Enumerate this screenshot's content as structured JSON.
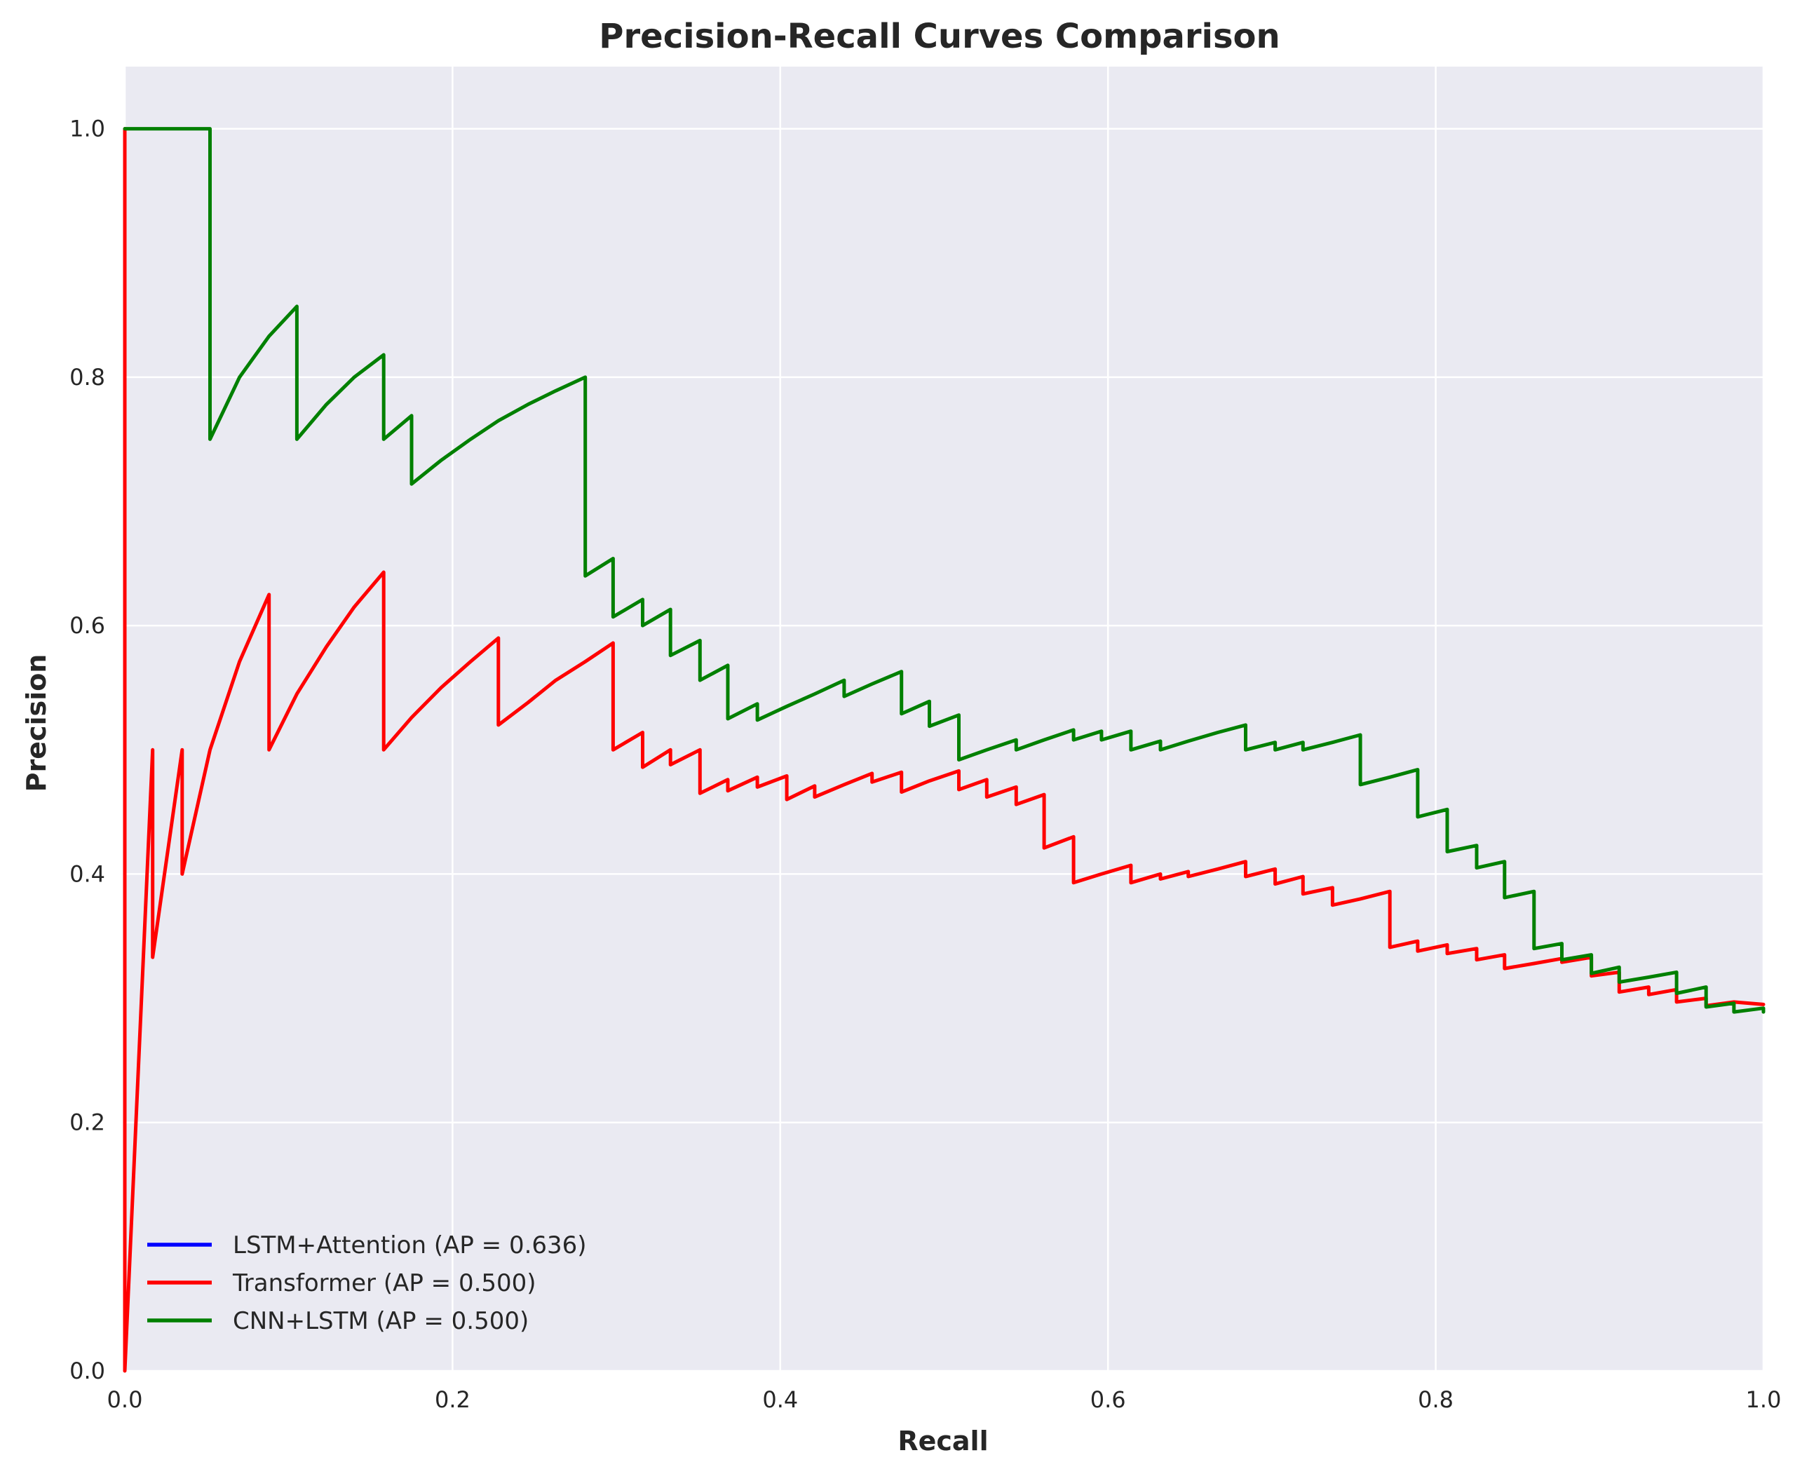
{
  "chart_data": {
    "type": "line",
    "title": "Precision-Recall Curves Comparison",
    "xlabel": "Recall",
    "ylabel": "Precision",
    "xlim": [
      0.0,
      1.0
    ],
    "ylim": [
      0.0,
      1.05
    ],
    "xticks": [
      "0.0",
      "0.2",
      "0.4",
      "0.6",
      "0.8",
      "1.0"
    ],
    "yticks": [
      "0.0",
      "0.2",
      "0.4",
      "0.6",
      "0.8",
      "1.0"
    ],
    "grid": true,
    "legend_position": "lower-left",
    "legend": [
      {
        "label": "LSTM+Attention (AP = 0.636)",
        "color": "#0000ff"
      },
      {
        "label": "Transformer (AP = 0.500)",
        "color": "#ff0000"
      },
      {
        "label": "CNN+LSTM (AP = 0.500)",
        "color": "#008000"
      }
    ],
    "series": [
      {
        "name": "LSTM+Attention (AP = 0.636)",
        "color": "#0000ff",
        "points": []
      },
      {
        "name": "Transformer (AP = 0.500)",
        "color": "#ff0000",
        "points": [
          [
            0.0,
            1.0
          ],
          [
            0.0,
            0.0
          ],
          [
            0.017,
            0.5
          ],
          [
            0.017,
            0.333
          ],
          [
            0.035,
            0.5
          ],
          [
            0.035,
            0.4
          ],
          [
            0.052,
            0.5
          ],
          [
            0.07,
            0.571
          ],
          [
            0.088,
            0.625
          ],
          [
            0.088,
            0.5
          ],
          [
            0.105,
            0.545
          ],
          [
            0.123,
            0.583
          ],
          [
            0.14,
            0.615
          ],
          [
            0.158,
            0.643
          ],
          [
            0.158,
            0.5
          ],
          [
            0.175,
            0.526
          ],
          [
            0.193,
            0.55
          ],
          [
            0.211,
            0.571
          ],
          [
            0.228,
            0.59
          ],
          [
            0.228,
            0.52
          ],
          [
            0.246,
            0.538
          ],
          [
            0.263,
            0.556
          ],
          [
            0.281,
            0.571
          ],
          [
            0.298,
            0.586
          ],
          [
            0.298,
            0.5
          ],
          [
            0.316,
            0.514
          ],
          [
            0.316,
            0.486
          ],
          [
            0.333,
            0.5
          ],
          [
            0.333,
            0.488
          ],
          [
            0.351,
            0.5
          ],
          [
            0.351,
            0.465
          ],
          [
            0.368,
            0.476
          ],
          [
            0.368,
            0.467
          ],
          [
            0.386,
            0.478
          ],
          [
            0.386,
            0.47
          ],
          [
            0.404,
            0.479
          ],
          [
            0.404,
            0.46
          ],
          [
            0.421,
            0.471
          ],
          [
            0.421,
            0.462
          ],
          [
            0.439,
            0.472
          ],
          [
            0.456,
            0.481
          ],
          [
            0.456,
            0.474
          ],
          [
            0.474,
            0.482
          ],
          [
            0.474,
            0.466
          ],
          [
            0.491,
            0.475
          ],
          [
            0.509,
            0.483
          ],
          [
            0.509,
            0.468
          ],
          [
            0.526,
            0.476
          ],
          [
            0.526,
            0.462
          ],
          [
            0.544,
            0.47
          ],
          [
            0.544,
            0.456
          ],
          [
            0.561,
            0.464
          ],
          [
            0.561,
            0.421
          ],
          [
            0.579,
            0.43
          ],
          [
            0.579,
            0.393
          ],
          [
            0.596,
            0.4
          ],
          [
            0.614,
            0.407
          ],
          [
            0.614,
            0.393
          ],
          [
            0.632,
            0.4
          ],
          [
            0.632,
            0.396
          ],
          [
            0.649,
            0.402
          ],
          [
            0.649,
            0.398
          ],
          [
            0.667,
            0.404
          ],
          [
            0.684,
            0.41
          ],
          [
            0.684,
            0.398
          ],
          [
            0.702,
            0.404
          ],
          [
            0.702,
            0.392
          ],
          [
            0.719,
            0.398
          ],
          [
            0.719,
            0.384
          ],
          [
            0.737,
            0.389
          ],
          [
            0.737,
            0.375
          ],
          [
            0.754,
            0.38
          ],
          [
            0.772,
            0.386
          ],
          [
            0.772,
            0.341
          ],
          [
            0.789,
            0.346
          ],
          [
            0.789,
            0.338
          ],
          [
            0.807,
            0.343
          ],
          [
            0.807,
            0.336
          ],
          [
            0.825,
            0.34
          ],
          [
            0.825,
            0.331
          ],
          [
            0.842,
            0.335
          ],
          [
            0.842,
            0.324
          ],
          [
            0.86,
            0.328
          ],
          [
            0.877,
            0.332
          ],
          [
            0.877,
            0.329
          ],
          [
            0.895,
            0.333
          ],
          [
            0.895,
            0.318
          ],
          [
            0.912,
            0.321
          ],
          [
            0.912,
            0.305
          ],
          [
            0.93,
            0.309
          ],
          [
            0.93,
            0.303
          ],
          [
            0.947,
            0.307
          ],
          [
            0.947,
            0.297
          ],
          [
            0.965,
            0.3
          ],
          [
            0.965,
            0.294
          ],
          [
            0.982,
            0.297
          ],
          [
            1.0,
            0.295
          ]
        ]
      },
      {
        "name": "CNN+LSTM (AP = 0.500)",
        "color": "#008000",
        "points": [
          [
            0.0,
            1.0
          ],
          [
            0.052,
            1.0
          ],
          [
            0.052,
            0.75
          ],
          [
            0.07,
            0.8
          ],
          [
            0.088,
            0.833
          ],
          [
            0.105,
            0.857
          ],
          [
            0.105,
            0.75
          ],
          [
            0.123,
            0.778
          ],
          [
            0.14,
            0.8
          ],
          [
            0.158,
            0.818
          ],
          [
            0.158,
            0.75
          ],
          [
            0.175,
            0.769
          ],
          [
            0.175,
            0.714
          ],
          [
            0.193,
            0.733
          ],
          [
            0.211,
            0.75
          ],
          [
            0.228,
            0.765
          ],
          [
            0.246,
            0.778
          ],
          [
            0.263,
            0.789
          ],
          [
            0.281,
            0.8
          ],
          [
            0.281,
            0.64
          ],
          [
            0.298,
            0.654
          ],
          [
            0.298,
            0.607
          ],
          [
            0.316,
            0.621
          ],
          [
            0.316,
            0.6
          ],
          [
            0.333,
            0.613
          ],
          [
            0.333,
            0.576
          ],
          [
            0.351,
            0.588
          ],
          [
            0.351,
            0.556
          ],
          [
            0.368,
            0.568
          ],
          [
            0.368,
            0.525
          ],
          [
            0.386,
            0.537
          ],
          [
            0.386,
            0.524
          ],
          [
            0.404,
            0.535
          ],
          [
            0.421,
            0.545
          ],
          [
            0.439,
            0.556
          ],
          [
            0.439,
            0.543
          ],
          [
            0.456,
            0.553
          ],
          [
            0.474,
            0.563
          ],
          [
            0.474,
            0.529
          ],
          [
            0.491,
            0.539
          ],
          [
            0.491,
            0.519
          ],
          [
            0.509,
            0.528
          ],
          [
            0.509,
            0.492
          ],
          [
            0.526,
            0.5
          ],
          [
            0.544,
            0.508
          ],
          [
            0.544,
            0.5
          ],
          [
            0.561,
            0.508
          ],
          [
            0.579,
            0.516
          ],
          [
            0.579,
            0.508
          ],
          [
            0.596,
            0.515
          ],
          [
            0.596,
            0.508
          ],
          [
            0.614,
            0.515
          ],
          [
            0.614,
            0.5
          ],
          [
            0.632,
            0.507
          ],
          [
            0.632,
            0.5
          ],
          [
            0.649,
            0.507
          ],
          [
            0.667,
            0.514
          ],
          [
            0.684,
            0.52
          ],
          [
            0.684,
            0.5
          ],
          [
            0.702,
            0.506
          ],
          [
            0.702,
            0.5
          ],
          [
            0.719,
            0.506
          ],
          [
            0.719,
            0.5
          ],
          [
            0.737,
            0.506
          ],
          [
            0.754,
            0.512
          ],
          [
            0.754,
            0.472
          ],
          [
            0.772,
            0.478
          ],
          [
            0.789,
            0.484
          ],
          [
            0.789,
            0.446
          ],
          [
            0.807,
            0.452
          ],
          [
            0.807,
            0.418
          ],
          [
            0.825,
            0.423
          ],
          [
            0.825,
            0.405
          ],
          [
            0.842,
            0.41
          ],
          [
            0.842,
            0.381
          ],
          [
            0.86,
            0.386
          ],
          [
            0.86,
            0.34
          ],
          [
            0.877,
            0.344
          ],
          [
            0.877,
            0.331
          ],
          [
            0.895,
            0.335
          ],
          [
            0.895,
            0.32
          ],
          [
            0.912,
            0.325
          ],
          [
            0.912,
            0.313
          ],
          [
            0.93,
            0.317
          ],
          [
            0.947,
            0.321
          ],
          [
            0.947,
            0.304
          ],
          [
            0.965,
            0.309
          ],
          [
            0.965,
            0.293
          ],
          [
            0.982,
            0.296
          ],
          [
            0.982,
            0.289
          ],
          [
            1.0,
            0.292
          ],
          [
            1.0,
            0.289
          ]
        ]
      }
    ]
  }
}
